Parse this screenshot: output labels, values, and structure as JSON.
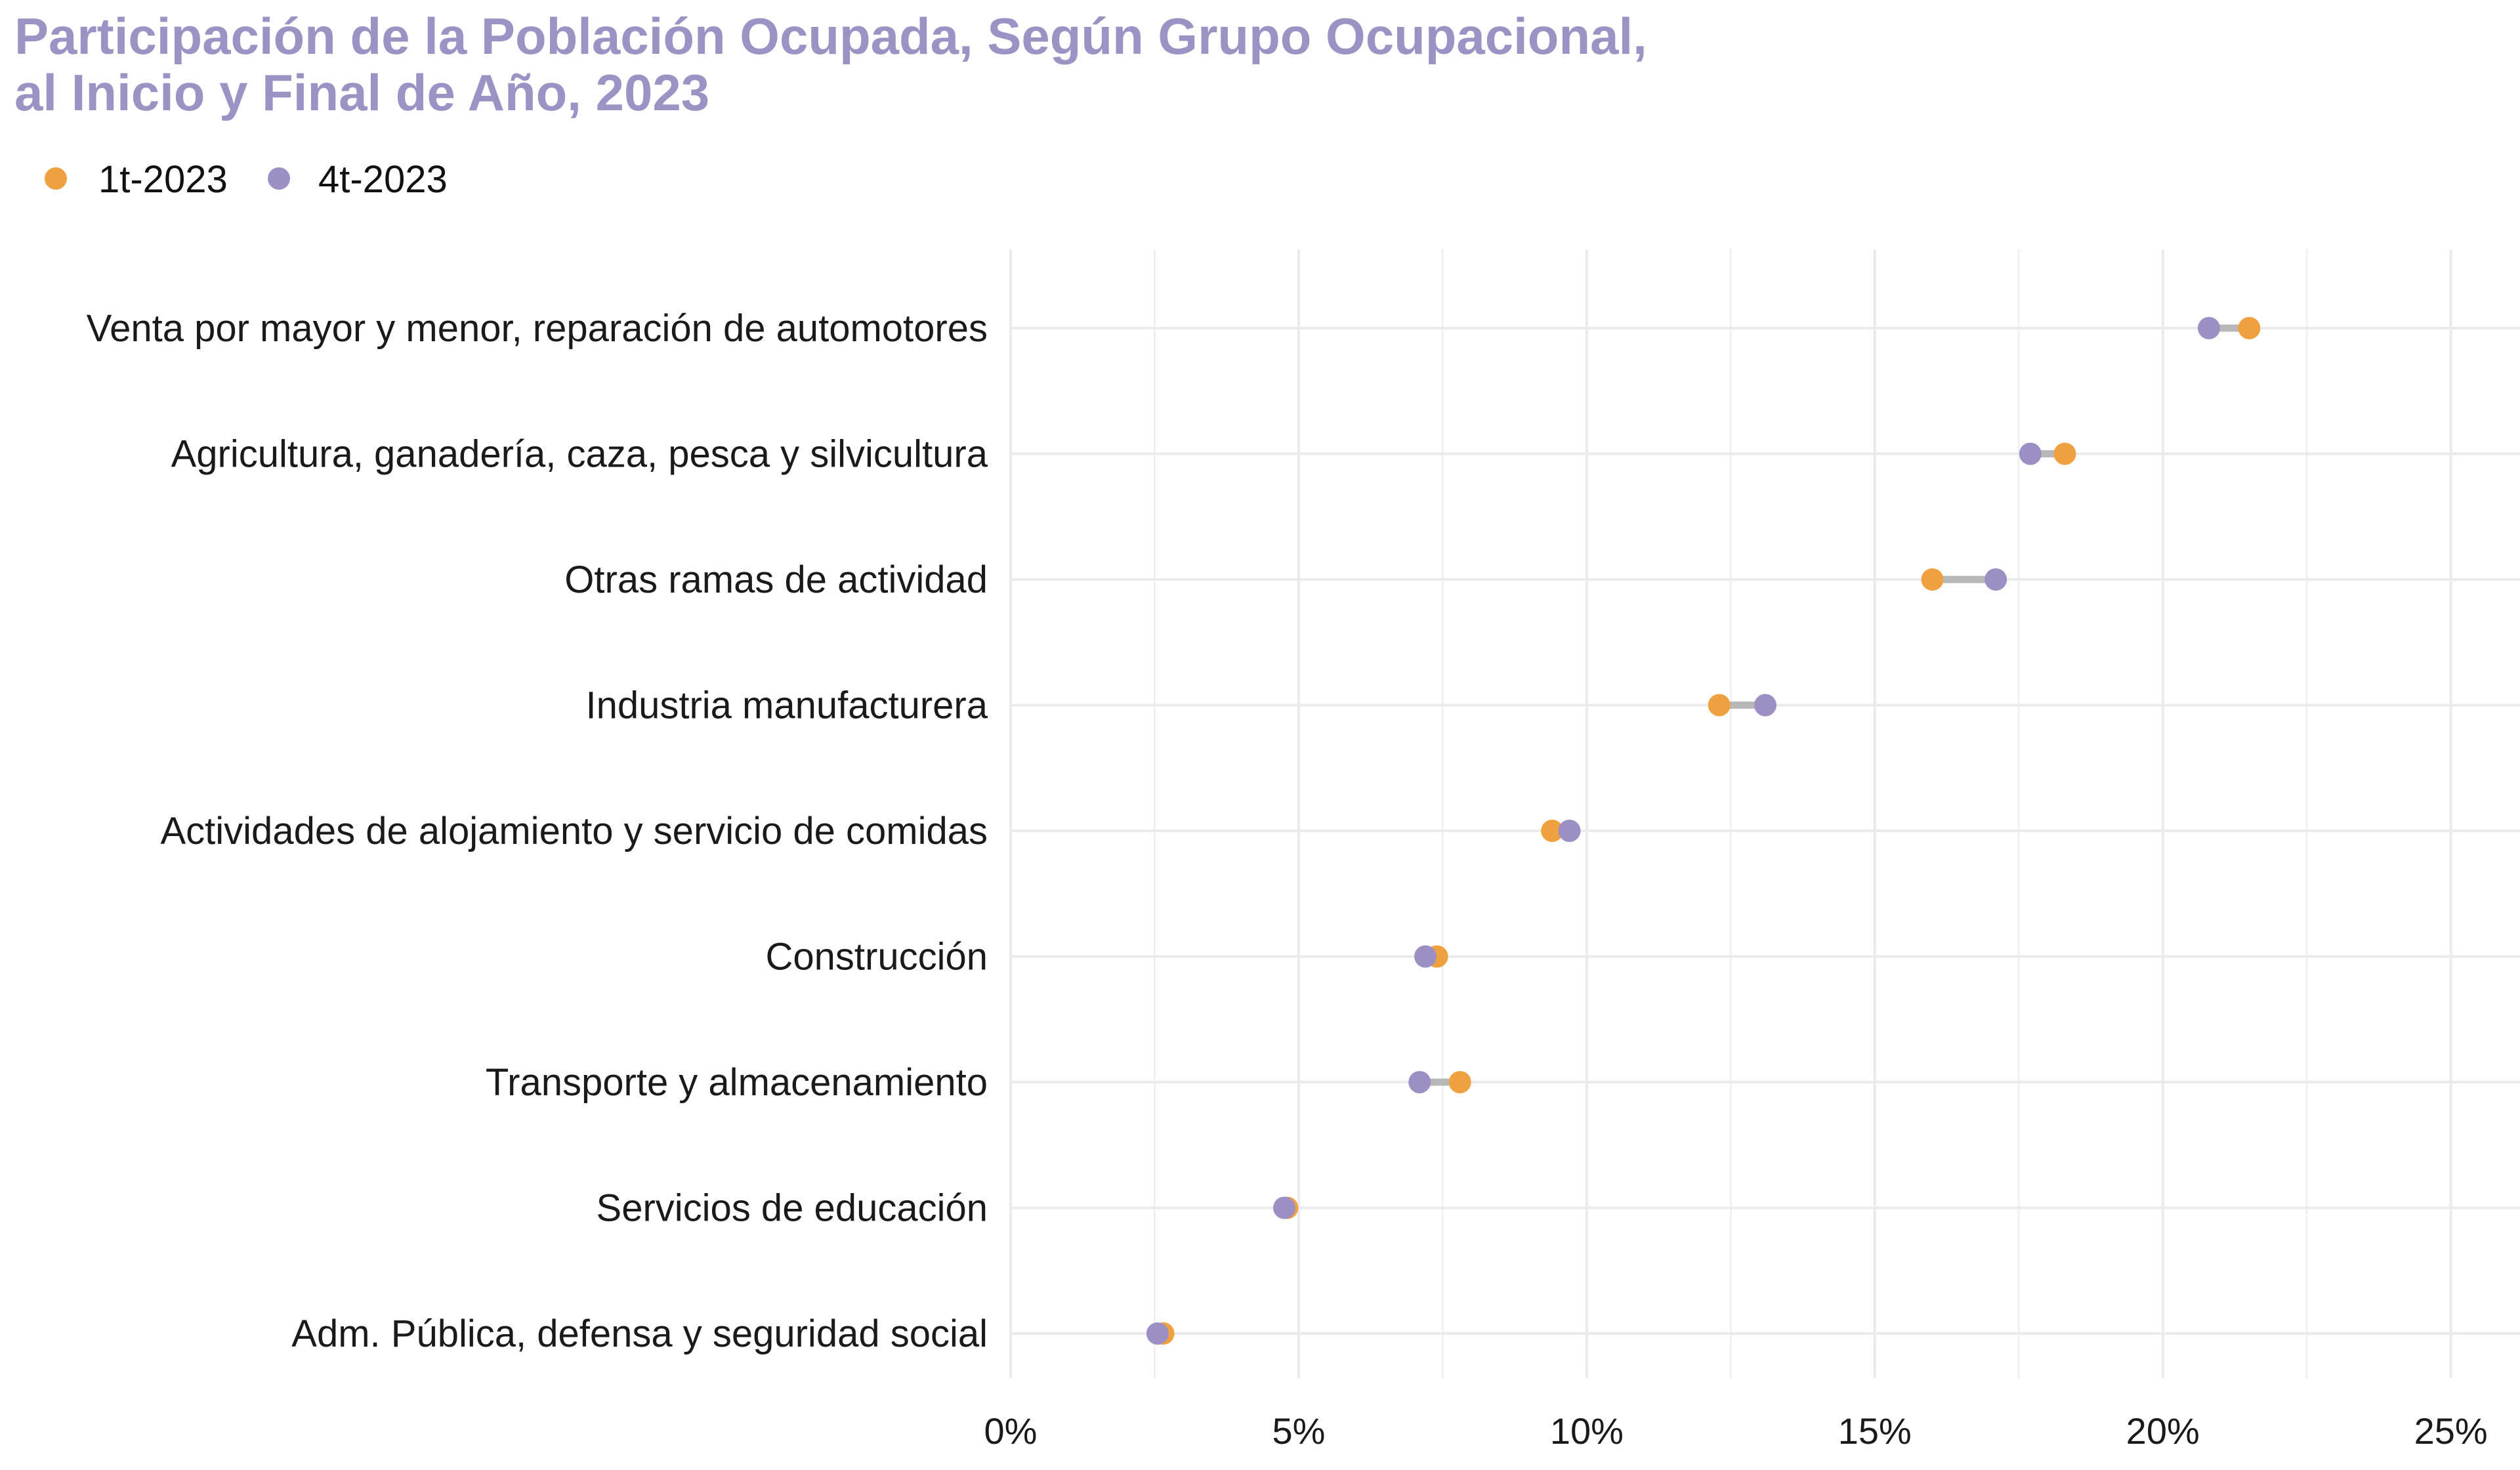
{
  "colors": {
    "title": "#9b93c4",
    "series_1t": "#f0a13f",
    "series_4t": "#9b8fc4",
    "connector": "#b8b8b8",
    "grid": "#ebebeb"
  },
  "chart_data": {
    "type": "dumbbell",
    "title_lines": [
      "Participación de la Población Ocupada, Según Grupo Ocupacional,",
      "al Inicio y Final de Año, 2023"
    ],
    "legend_position": "top-left",
    "grid": true,
    "x_range": [
      0,
      26.2
    ],
    "x_ticks": [
      0,
      5,
      10,
      15,
      20,
      25
    ],
    "x_tick_labels": [
      "0%",
      "5%",
      "10%",
      "15%",
      "20%",
      "25%"
    ],
    "categories": [
      "Venta por mayor y menor, reparación de automotores",
      "Agricultura, ganadería, caza, pesca y silvicultura",
      "Otras ramas de actividad",
      "Industria manufacturera",
      "Actividades de alojamiento y servicio de comidas",
      "Construcción",
      "Transporte y almacenamiento",
      "Servicios de educación",
      "Adm. Pública, defensa y seguridad social"
    ],
    "series": [
      {
        "name": "1t-2023",
        "color_key": "series_1t",
        "values": [
          21.5,
          18.3,
          16.0,
          12.3,
          9.4,
          7.4,
          7.8,
          4.8,
          2.65
        ]
      },
      {
        "name": "4t-2023",
        "color_key": "series_4t",
        "values": [
          20.8,
          17.7,
          17.1,
          13.1,
          9.7,
          7.2,
          7.1,
          4.75,
          2.55
        ]
      }
    ]
  }
}
